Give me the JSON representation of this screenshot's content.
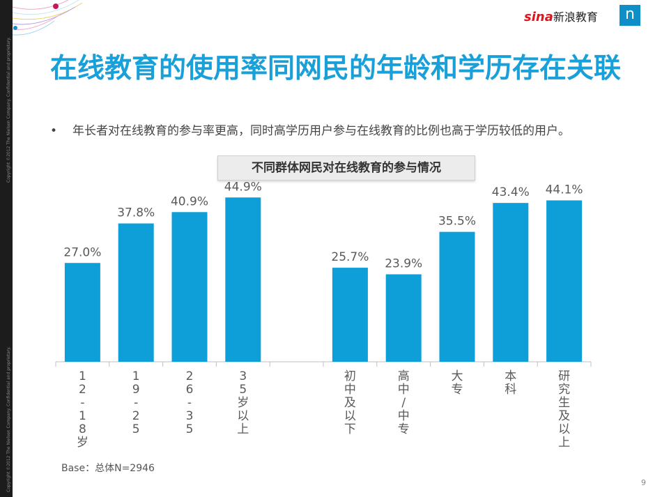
{
  "slide": {
    "title": "在线教育的使用率同网民的年龄和学历存在关联",
    "bullet_mark": "•",
    "bullet": "年长者对在线教育的参与率更高，同时高学历用户参与在线教育的比例也高于学历较低的用户。",
    "subtitle": "不同群体网民对在线教育的参与情况",
    "base": "Base：总体N=2946",
    "page_number": "9",
    "sidebar_text_top": "Copyright ©2012 The Nielsen Company. Confidential and proprietary.",
    "sidebar_text_bottom": "Copyright ©2012 The Nielsen Company. Confidential and proprietary.",
    "logo_sina_prefix": "sina",
    "logo_sina_text": "新浪教育",
    "logo_n": "n"
  },
  "colors": {
    "title": "#1aa0d8",
    "bar": "#0e9fd8",
    "axis": "#bfbfbf",
    "label": "#595959"
  },
  "chart_data": {
    "type": "bar",
    "title": "不同群体网民对在线教育的参与情况",
    "categories": [
      "12-18岁",
      "19-25",
      "26-35",
      "35岁以上",
      "",
      "初中及以下",
      "高中/中专",
      "大专",
      "本科",
      "研究生及以上"
    ],
    "category_labels": [
      [
        "1",
        "2",
        "-",
        "1",
        "8",
        "岁"
      ],
      [
        "1",
        "9",
        "-",
        "2",
        "5"
      ],
      [
        "2",
        "6",
        "-",
        "3",
        "5"
      ],
      [
        "3",
        "5",
        "岁",
        "以",
        "上"
      ],
      [],
      [
        "初",
        "中",
        "及",
        "以",
        "下"
      ],
      [
        "高",
        "中",
        "/",
        "中",
        "专"
      ],
      [
        "大",
        "专"
      ],
      [
        "本",
        "科"
      ],
      [
        "研",
        "究",
        "生",
        "及",
        "以",
        "上"
      ]
    ],
    "values": [
      27.0,
      37.8,
      40.9,
      44.9,
      null,
      25.7,
      23.9,
      35.5,
      43.4,
      44.1
    ],
    "value_labels": [
      "27.0%",
      "37.8%",
      "40.9%",
      "44.9%",
      "",
      "25.7%",
      "23.9%",
      "35.5%",
      "43.4%",
      "44.1%"
    ],
    "ylim": [
      0,
      50
    ],
    "xlabel": "",
    "ylabel": "",
    "grid": false
  }
}
